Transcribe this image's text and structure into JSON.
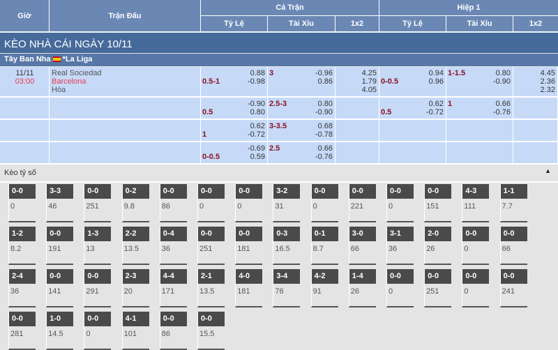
{
  "header": {
    "gio": "Giờ",
    "tran_dau": "Trận Đấu",
    "ca_tran": "Cả Trận",
    "hiep1": "Hiệp 1",
    "ty_le": "Tỷ Lệ",
    "tai_xiu": "Tài Xỉu",
    "x12": "1x2"
  },
  "title": "KÈO NHÀ CÁI NGÀY 10/11",
  "league": {
    "country": "Tây Ban Nha",
    "name": "*La Liga",
    "flag": "spain-flag"
  },
  "match": {
    "date": "11/11",
    "time": "03:00",
    "home": "Real Sociedad",
    "away": "Barcelona",
    "draw": "Hòa"
  },
  "rows": [
    {
      "ft_hdp": "0.5-1",
      "ft_hdp_odds": [
        "0.88",
        "-0.98"
      ],
      "ft_ou": "3",
      "ft_ou_odds": [
        "-0.96",
        "0.86"
      ],
      "ft_1x2": [
        "4.25",
        "1.79",
        "4.05"
      ],
      "h1_hdp": "0-0.5",
      "h1_hdp_odds": [
        "0.94",
        "0.96"
      ],
      "h1_ou": "1-1.5",
      "h1_ou_odds": [
        "0.80",
        "-0.90"
      ],
      "h1_1x2": [
        "4.45",
        "2.36",
        "2.32"
      ]
    },
    {
      "ft_hdp": "0.5",
      "ft_hdp_odds": [
        "-0.90",
        "0.80"
      ],
      "ft_ou": "2.5-3",
      "ft_ou_odds": [
        "0.80",
        "-0.90"
      ],
      "ft_1x2": [],
      "h1_hdp": "0.5",
      "h1_hdp_odds": [
        "0.62",
        "-0.72"
      ],
      "h1_ou": "1",
      "h1_ou_odds": [
        "0.66",
        "-0.76"
      ],
      "h1_1x2": []
    },
    {
      "ft_hdp": "1",
      "ft_hdp_odds": [
        "0.62",
        "-0.72"
      ],
      "ft_ou": "3-3.5",
      "ft_ou_odds": [
        "0.68",
        "-0.78"
      ],
      "ft_1x2": [],
      "h1_hdp": "",
      "h1_hdp_odds": [],
      "h1_ou": "",
      "h1_ou_odds": [],
      "h1_1x2": []
    },
    {
      "ft_hdp": "0-0.5",
      "ft_hdp_odds": [
        "-0.69",
        "0.59"
      ],
      "ft_ou": "2.5",
      "ft_ou_odds": [
        "0.66",
        "-0.76"
      ],
      "ft_1x2": [],
      "h1_hdp": "",
      "h1_hdp_odds": [],
      "h1_ou": "",
      "h1_ou_odds": [],
      "h1_1x2": []
    }
  ],
  "correct_score": {
    "title": "Kèo tỷ số",
    "items": [
      [
        "0-0",
        "0"
      ],
      [
        "3-3",
        "46"
      ],
      [
        "0-0",
        "251"
      ],
      [
        "0-2",
        "9.8"
      ],
      [
        "0-0",
        "86"
      ],
      [
        "0-0",
        "0"
      ],
      [
        "0-0",
        "0"
      ],
      [
        "3-2",
        "31"
      ],
      [
        "0-0",
        "0"
      ],
      [
        "0-0",
        "221"
      ],
      [
        "0-0",
        "0"
      ],
      [
        "0-0",
        "151"
      ],
      [
        "4-3",
        "111"
      ],
      [
        "1-1",
        "7.7"
      ],
      [
        "1-2",
        "8.2"
      ],
      [
        "0-0",
        "191"
      ],
      [
        "1-3",
        "13"
      ],
      [
        "2-2",
        "13.5"
      ],
      [
        "0-4",
        "36"
      ],
      [
        "0-0",
        "251"
      ],
      [
        "0-0",
        "181"
      ],
      [
        "0-3",
        "16.5"
      ],
      [
        "0-1",
        "8.7"
      ],
      [
        "3-0",
        "66"
      ],
      [
        "3-1",
        "36"
      ],
      [
        "2-0",
        "26"
      ],
      [
        "0-0",
        "0"
      ],
      [
        "0-0",
        "66"
      ],
      [
        "2-4",
        "36"
      ],
      [
        "0-0",
        "141"
      ],
      [
        "0-0",
        "291"
      ],
      [
        "2-3",
        "20"
      ],
      [
        "4-4",
        "171"
      ],
      [
        "2-1",
        "13.5"
      ],
      [
        "4-0",
        "181"
      ],
      [
        "3-4",
        "76"
      ],
      [
        "4-2",
        "91"
      ],
      [
        "1-4",
        "26"
      ],
      [
        "0-0",
        "0"
      ],
      [
        "0-0",
        "251"
      ],
      [
        "0-0",
        "0"
      ],
      [
        "0-0",
        "241"
      ],
      [
        "0-0",
        "281"
      ],
      [
        "1-0",
        "14.5"
      ],
      [
        "0-0",
        "0"
      ],
      [
        "4-1",
        "101"
      ],
      [
        "0-0",
        "86"
      ],
      [
        "0-0",
        "15.5"
      ]
    ]
  }
}
